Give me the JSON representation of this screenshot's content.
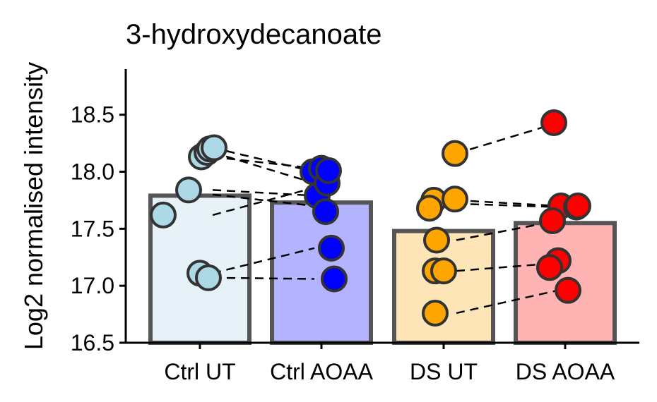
{
  "chart_data": {
    "type": "bar",
    "title": "3-hydroxydecanoate",
    "xlabel": "",
    "ylabel": "Log2 normalised intensity",
    "ylim": [
      16.5,
      18.9
    ],
    "yticks": [
      "16.5",
      "17.0",
      "17.5",
      "18.0",
      "18.5"
    ],
    "categories": [
      "Ctrl UT",
      "Ctrl AOAA",
      "DS UT",
      "DS AOAA"
    ],
    "values": [
      17.79,
      17.73,
      17.48,
      17.55
    ],
    "bar_fill_colors": [
      "#e6f2f8",
      "#b3b3ff",
      "#fde5b8",
      "#ffb3b3"
    ],
    "point_colors": [
      "#add8e6",
      "#0000ff",
      "#ffa500",
      "#ff0000"
    ],
    "grid": false,
    "legend": "none",
    "points": [
      [
        17.62,
        17.84,
        18.13,
        18.17,
        18.2,
        18.21,
        17.11,
        17.07
      ],
      [
        18.0,
        18.03,
        17.79,
        17.9,
        17.65,
        17.33,
        17.06,
        18.01
      ],
      [
        18.16,
        17.75,
        17.76,
        17.68,
        17.4,
        17.13,
        17.13,
        16.76
      ],
      [
        18.43,
        17.7,
        17.69,
        17.57,
        17.22,
        17.16,
        16.96,
        17.7
      ]
    ],
    "pairs": [
      [
        18.13,
        18.03
      ],
      [
        18.21,
        18.0
      ],
      [
        18.17,
        17.9
      ],
      [
        17.84,
        17.79
      ],
      [
        17.62,
        17.86
      ],
      [
        17.8,
        17.7
      ],
      [
        17.11,
        17.33
      ],
      [
        17.07,
        17.06
      ],
      [
        18.16,
        18.43
      ],
      [
        17.75,
        17.7
      ],
      [
        17.72,
        17.69
      ],
      [
        17.4,
        17.57
      ],
      [
        17.13,
        17.2
      ],
      [
        16.76,
        16.96
      ]
    ],
    "pair_sides": [
      "01",
      "01",
      "01",
      "01",
      "01",
      "01",
      "01",
      "01",
      "23",
      "23",
      "23",
      "23",
      "23",
      "23"
    ]
  }
}
